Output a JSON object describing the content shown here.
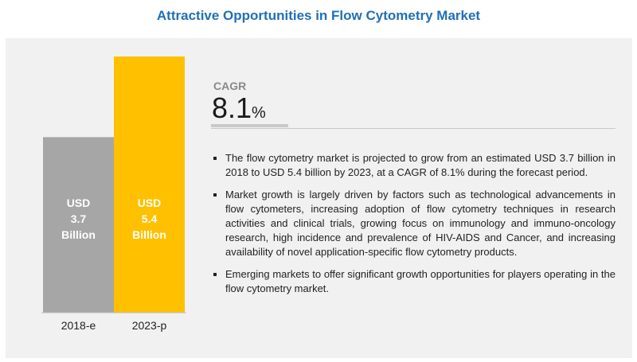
{
  "title": "Attractive Opportunities in Flow Cytometry Market",
  "chart_data": {
    "type": "bar",
    "categories": [
      "2018-e",
      "2023-p"
    ],
    "values": [
      3.7,
      5.4
    ],
    "bar_labels": [
      [
        "USD",
        "3.7",
        "Billion"
      ],
      [
        "USD",
        "5.4",
        "Billion"
      ]
    ],
    "colors": [
      "#a6a6a6",
      "#ffc000"
    ],
    "ylim": [
      0,
      5.4
    ]
  },
  "cagr": {
    "label": "CAGR",
    "value": "8.1",
    "unit": "%"
  },
  "bullets": [
    "The flow cytometry market is projected to grow from an estimated USD 3.7 billion in 2018 to USD 5.4 billion by 2023, at a CAGR of 8.1% during the forecast period.",
    "Market growth is largely driven by factors such as technological advancements in flow cytometers, increasing adoption of flow cytometry techniques in research activities and clinical trials, growing focus on immunology and immuno-oncology research, high incidence and prevalence of HIV-AIDS and Cancer, and increasing availability of novel application-specific flow cytometry products.",
    "Emerging markets to offer significant growth opportunities for players operating in the flow cytometry market."
  ]
}
